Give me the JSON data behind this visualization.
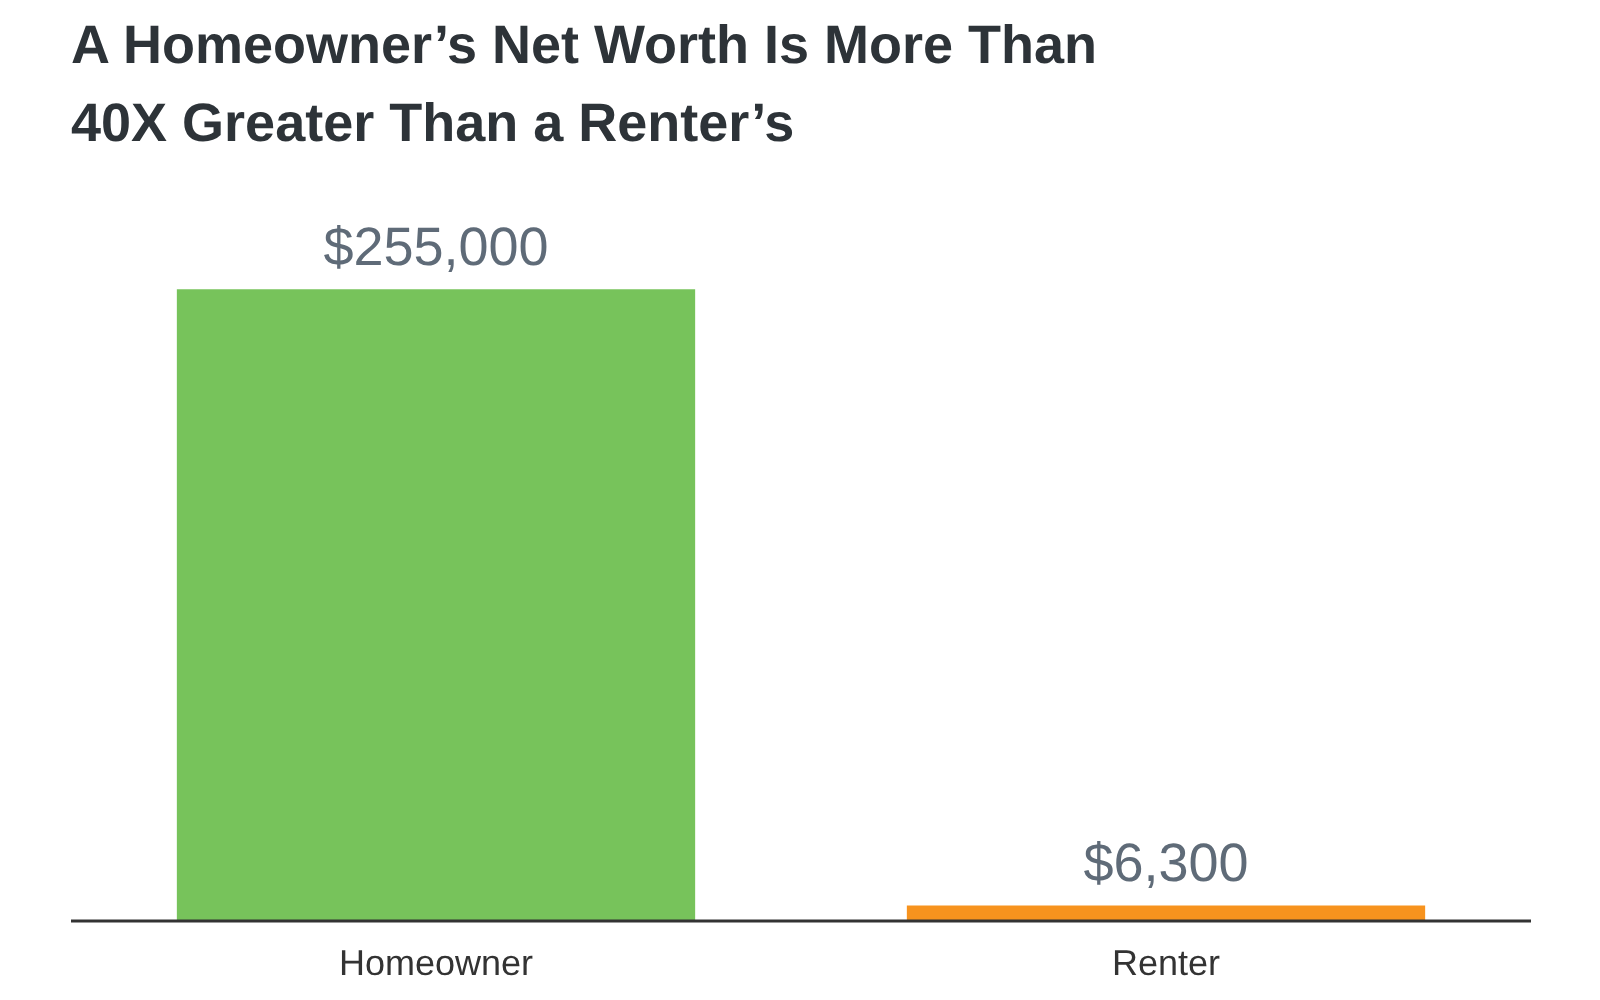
{
  "chart_data": {
    "type": "bar",
    "title": "A Homeowner’s Net Worth Is More Than 40X Greater Than a Renter’s",
    "categories": [
      "Homeowner",
      "Renter"
    ],
    "values": [
      255000,
      6300
    ],
    "colors": [
      "#77c35b",
      "#f7931e"
    ],
    "value_labels": [
      "$255,000",
      "$6,300"
    ],
    "grid": false
  }
}
